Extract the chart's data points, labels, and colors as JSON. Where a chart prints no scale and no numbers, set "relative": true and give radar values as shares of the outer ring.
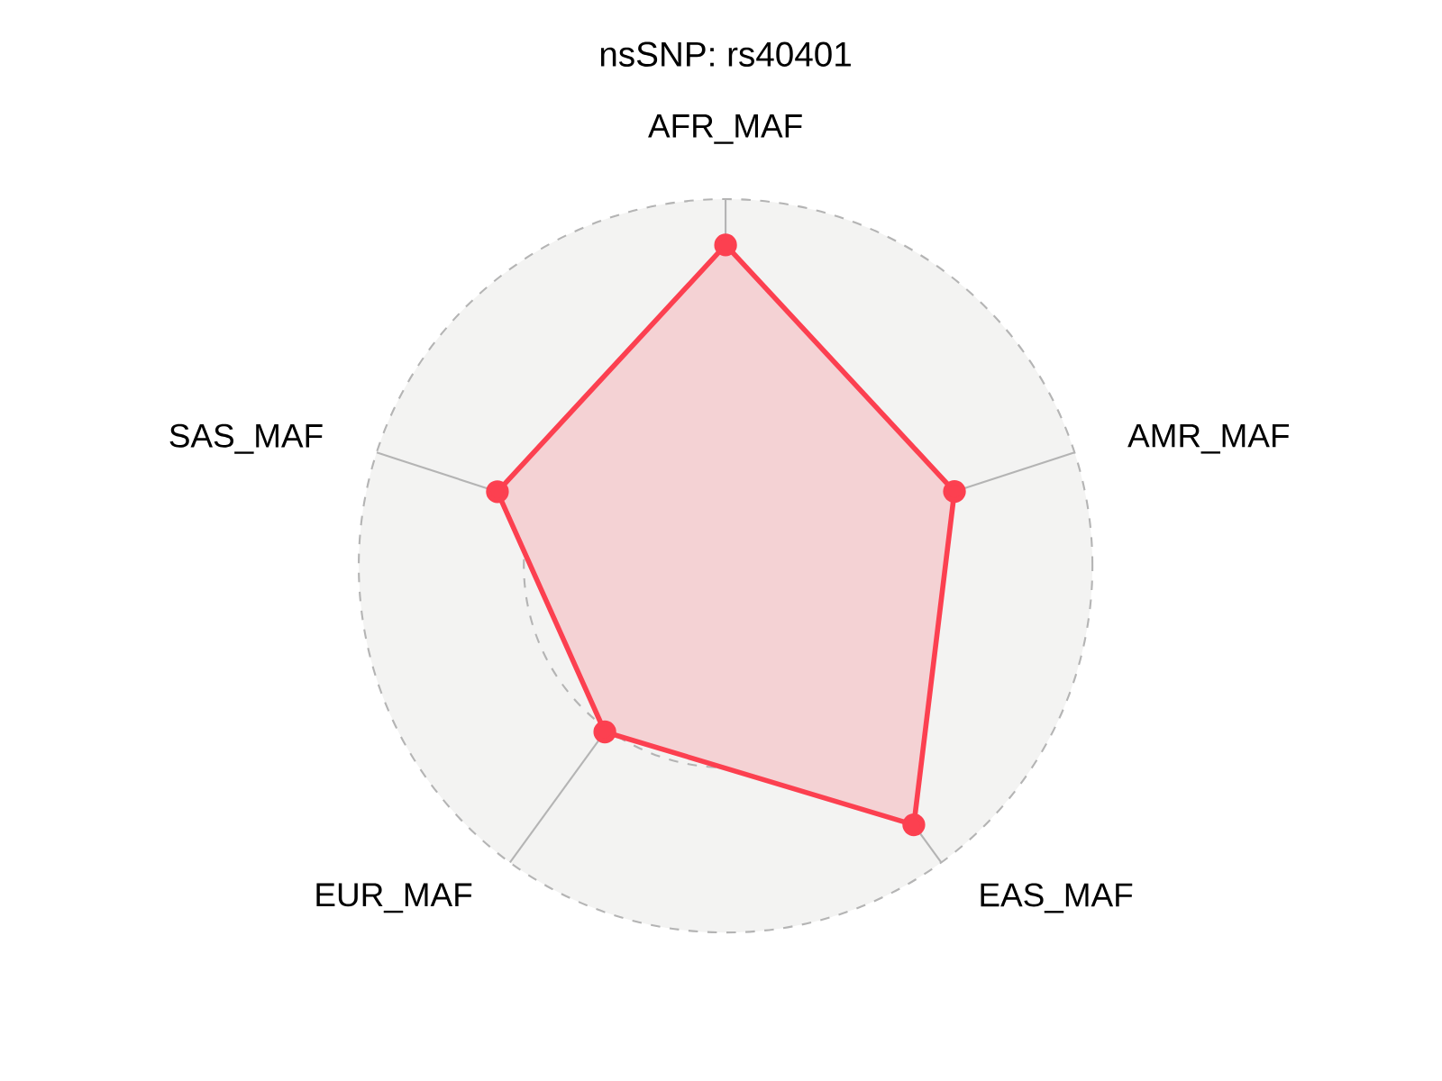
{
  "chart_data": {
    "type": "radar",
    "title": "nsSNP: rs40401",
    "categories": [
      "AFR_MAF",
      "AMR_MAF",
      "EAS_MAF",
      "EUR_MAF",
      "SAS_MAF"
    ],
    "series": [
      {
        "color": "#fc4050",
        "values": [
          0.875,
          0.656,
          0.873,
          0.56,
          0.654
        ]
      }
    ],
    "relative": true,
    "grid": true,
    "marker": "circle"
  }
}
